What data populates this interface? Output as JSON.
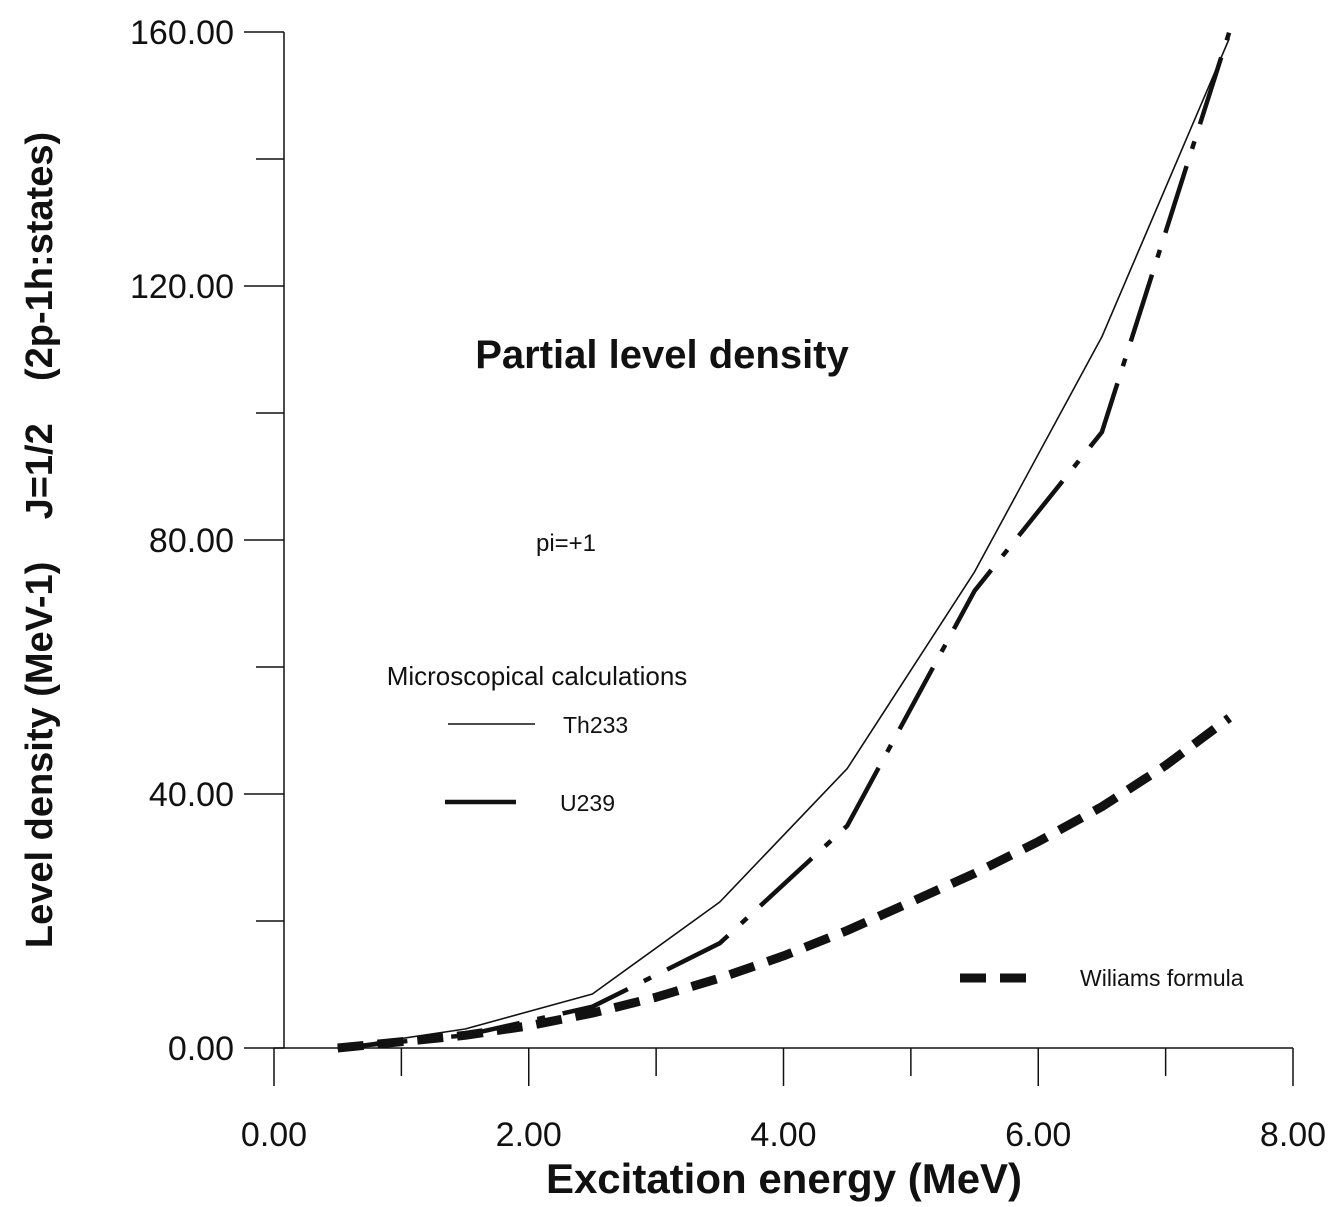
{
  "chart_data": {
    "type": "line",
    "title": "Partial level density",
    "xlabel": "Excitation energy (MeV)",
    "ylabel": "Level density (MeV-1)    J=1/2    (2p-1h:states)",
    "xlim": [
      0,
      8
    ],
    "ylim": [
      0,
      160
    ],
    "x_ticks": [
      0,
      2,
      4,
      6,
      8
    ],
    "x_tick_labels": [
      "0.00",
      "2.00",
      "4.00",
      "6.00",
      "8.00"
    ],
    "x_minor_ticks": [
      1,
      3,
      5,
      7
    ],
    "y_ticks": [
      0,
      40,
      80,
      120,
      160
    ],
    "y_tick_labels": [
      "0.00",
      "40.00",
      "80.00",
      "120.00",
      "160.00"
    ],
    "y_minor_ticks": [
      20,
      60,
      100,
      140
    ],
    "grid": false,
    "annotations": {
      "parity": "pi=+1",
      "legend_heading": "Microscopical calculations"
    },
    "series": [
      {
        "name": "Th233",
        "style": "thin-solid",
        "x": [
          0.5,
          1.5,
          2.5,
          3.5,
          4.5,
          5.5,
          6.5,
          7.5
        ],
        "y": [
          0,
          3,
          8.5,
          23,
          44,
          75,
          112,
          159
        ]
      },
      {
        "name": "U239",
        "style": "long-dash",
        "x": [
          0.5,
          1.5,
          2.5,
          3.5,
          4.5,
          5.5,
          6.5,
          7.5
        ],
        "y": [
          0,
          2,
          6.5,
          16.5,
          35,
          72,
          97,
          160
        ]
      },
      {
        "name": "Wiliams formula",
        "style": "thick-dash",
        "x": [
          0.5,
          1.0,
          1.5,
          2.0,
          2.5,
          3.0,
          3.5,
          4.0,
          4.5,
          5.0,
          5.5,
          6.0,
          6.5,
          7.0,
          7.5
        ],
        "y": [
          0,
          1,
          2,
          3.5,
          5.5,
          8,
          11,
          14.5,
          18.5,
          23,
          27.5,
          32.5,
          38,
          44.5,
          52
        ]
      }
    ],
    "colors": {
      "line": "#111111",
      "axis": "#111111",
      "background": "#ffffff"
    }
  }
}
